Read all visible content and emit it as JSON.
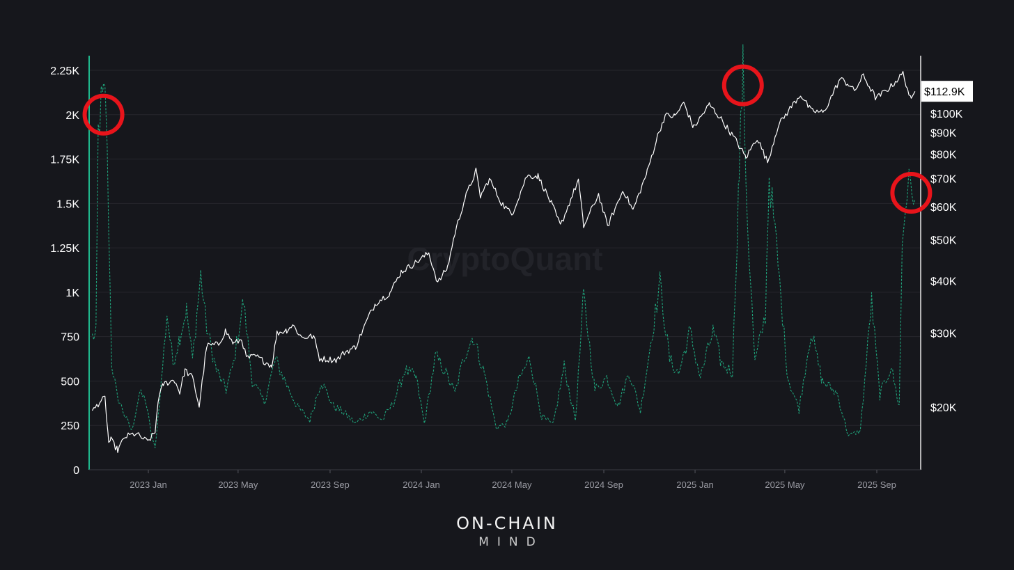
{
  "watermark": "CryptoQuant",
  "brand": {
    "line1": "ON-CHAIN",
    "line2": "MIND"
  },
  "colors": {
    "background": "#16171c",
    "price_line": "#ffffff",
    "metric_line": "#1fa27a",
    "left_axis": "#1fb88c",
    "highlight_circle": "#e8141b",
    "grid": "#26272d"
  },
  "chart_data": {
    "type": "line",
    "title": "",
    "x_ticks": [
      "2023 Jan",
      "2023 May",
      "2023 Sep",
      "2024 Jan",
      "2024 May",
      "2024 Sep",
      "2025 Jan",
      "2025 May",
      "2025 Sep"
    ],
    "x_range": [
      "2022-10-17",
      "2025-10-24"
    ],
    "y_left": {
      "ticks": [
        0,
        250,
        500,
        750,
        1000,
        1250,
        1500,
        1750,
        2000,
        2250
      ],
      "tick_labels": [
        "0",
        "250",
        "500",
        "750",
        "1K",
        "1.25K",
        "1.5K",
        "1.75K",
        "2K",
        "2.25K"
      ],
      "range": [
        0,
        2250
      ]
    },
    "y_right": {
      "scale": "log",
      "ticks": [
        20000,
        30000,
        40000,
        50000,
        60000,
        70000,
        80000,
        90000,
        100000
      ],
      "tick_labels": [
        "$20K",
        "$30K",
        "$40K",
        "$50K",
        "$60K",
        "$70K",
        "$80K",
        "$90K",
        "$100K"
      ],
      "last_value_label": "$112.9K"
    },
    "series": [
      {
        "axis": "right",
        "style": "solid",
        "color": "#ffffff",
        "points": [
          [
            "2022-10-18",
            19500
          ],
          [
            "2022-10-28",
            20600
          ],
          [
            "2022-11-04",
            21000
          ],
          [
            "2022-11-09",
            16500
          ],
          [
            "2022-11-12",
            16700
          ],
          [
            "2022-11-21",
            15800
          ],
          [
            "2022-12-01",
            17000
          ],
          [
            "2022-12-15",
            17300
          ],
          [
            "2022-12-31",
            16550
          ],
          [
            "2023-01-10",
            17400
          ],
          [
            "2023-01-14",
            20800
          ],
          [
            "2023-01-21",
            22700
          ],
          [
            "2023-02-05",
            23200
          ],
          [
            "2023-02-12",
            21700
          ],
          [
            "2023-02-19",
            24500
          ],
          [
            "2023-03-01",
            23500
          ],
          [
            "2023-03-10",
            20100
          ],
          [
            "2023-03-20",
            28000
          ],
          [
            "2023-04-05",
            28200
          ],
          [
            "2023-04-14",
            30400
          ],
          [
            "2023-04-25",
            28300
          ],
          [
            "2023-05-06",
            29000
          ],
          [
            "2023-05-12",
            26200
          ],
          [
            "2023-05-25",
            26400
          ],
          [
            "2023-06-15",
            25100
          ],
          [
            "2023-06-22",
            30000
          ],
          [
            "2023-07-05",
            30500
          ],
          [
            "2023-07-13",
            31400
          ],
          [
            "2023-07-25",
            29300
          ],
          [
            "2023-08-10",
            29500
          ],
          [
            "2023-08-18",
            26100
          ],
          [
            "2023-09-10",
            25900
          ],
          [
            "2023-09-20",
            27000
          ],
          [
            "2023-10-05",
            27800
          ],
          [
            "2023-10-23",
            33000
          ],
          [
            "2023-11-01",
            35400
          ],
          [
            "2023-11-20",
            37400
          ],
          [
            "2023-12-05",
            42000
          ],
          [
            "2023-12-20",
            43600
          ],
          [
            "2024-01-11",
            46500
          ],
          [
            "2024-01-23",
            39500
          ],
          [
            "2024-02-05",
            43000
          ],
          [
            "2024-02-15",
            52000
          ],
          [
            "2024-02-28",
            62500
          ],
          [
            "2024-03-14",
            73000
          ],
          [
            "2024-03-20",
            63500
          ],
          [
            "2024-04-01",
            69800
          ],
          [
            "2024-04-17",
            61300
          ],
          [
            "2024-05-01",
            57500
          ],
          [
            "2024-05-21",
            71000
          ],
          [
            "2024-06-05",
            71000
          ],
          [
            "2024-06-24",
            60500
          ],
          [
            "2024-07-05",
            54000
          ],
          [
            "2024-07-29",
            69500
          ],
          [
            "2024-08-05",
            53800
          ],
          [
            "2024-08-25",
            64200
          ],
          [
            "2024-09-06",
            53900
          ],
          [
            "2024-09-27",
            65800
          ],
          [
            "2024-10-10",
            58800
          ],
          [
            "2024-10-29",
            72600
          ],
          [
            "2024-11-12",
            88500
          ],
          [
            "2024-11-22",
            98900
          ],
          [
            "2024-12-05",
            98500
          ],
          [
            "2024-12-17",
            106000
          ],
          [
            "2024-12-30",
            92500
          ],
          [
            "2025-01-20",
            105000
          ],
          [
            "2025-02-03",
            98000
          ],
          [
            "2025-02-25",
            86000
          ],
          [
            "2025-03-10",
            78500
          ],
          [
            "2025-03-25",
            87500
          ],
          [
            "2025-04-08",
            76500
          ],
          [
            "2025-04-22",
            93500
          ],
          [
            "2025-05-10",
            104000
          ],
          [
            "2025-05-22",
            111000
          ],
          [
            "2025-06-05",
            101500
          ],
          [
            "2025-06-22",
            100500
          ],
          [
            "2025-07-14",
            121000
          ],
          [
            "2025-07-25",
            117500
          ],
          [
            "2025-08-02",
            113000
          ],
          [
            "2025-08-14",
            123000
          ],
          [
            "2025-08-31",
            108500
          ],
          [
            "2025-09-20",
            116000
          ],
          [
            "2025-10-06",
            124500
          ],
          [
            "2025-10-17",
            107000
          ],
          [
            "2025-10-22",
            112900
          ]
        ]
      },
      {
        "axis": "left",
        "style": "dashed",
        "color": "#1fa27a",
        "points": [
          [
            "2022-10-18",
            750
          ],
          [
            "2022-10-23",
            760
          ],
          [
            "2022-10-26",
            1900
          ],
          [
            "2022-10-30",
            2050
          ],
          [
            "2022-11-02",
            2080
          ],
          [
            "2022-11-05",
            2100
          ],
          [
            "2022-11-09",
            1400
          ],
          [
            "2022-11-13",
            600
          ],
          [
            "2022-11-20",
            420
          ],
          [
            "2022-12-01",
            300
          ],
          [
            "2022-12-10",
            220
          ],
          [
            "2022-12-20",
            430
          ],
          [
            "2022-12-28",
            400
          ],
          [
            "2023-01-05",
            200
          ],
          [
            "2023-01-10",
            120
          ],
          [
            "2023-01-18",
            480
          ],
          [
            "2023-01-26",
            880
          ],
          [
            "2023-02-03",
            600
          ],
          [
            "2023-02-12",
            750
          ],
          [
            "2023-02-21",
            900
          ],
          [
            "2023-03-01",
            620
          ],
          [
            "2023-03-12",
            1100
          ],
          [
            "2023-03-20",
            800
          ],
          [
            "2023-04-02",
            560
          ],
          [
            "2023-04-15",
            450
          ],
          [
            "2023-04-25",
            600
          ],
          [
            "2023-05-08",
            950
          ],
          [
            "2023-05-20",
            500
          ],
          [
            "2023-06-05",
            380
          ],
          [
            "2023-06-20",
            620
          ],
          [
            "2023-07-05",
            480
          ],
          [
            "2023-07-20",
            350
          ],
          [
            "2023-08-05",
            280
          ],
          [
            "2023-08-20",
            500
          ],
          [
            "2023-09-05",
            360
          ],
          [
            "2023-09-20",
            320
          ],
          [
            "2023-10-05",
            260
          ],
          [
            "2023-10-25",
            330
          ],
          [
            "2023-11-10",
            280
          ],
          [
            "2023-11-25",
            380
          ],
          [
            "2023-12-10",
            560
          ],
          [
            "2023-12-25",
            520
          ],
          [
            "2024-01-05",
            260
          ],
          [
            "2024-01-20",
            640
          ],
          [
            "2024-02-01",
            560
          ],
          [
            "2024-02-15",
            430
          ],
          [
            "2024-02-28",
            650
          ],
          [
            "2024-03-10",
            750
          ],
          [
            "2024-03-25",
            550
          ],
          [
            "2024-04-10",
            240
          ],
          [
            "2024-04-25",
            260
          ],
          [
            "2024-05-10",
            500
          ],
          [
            "2024-05-25",
            630
          ],
          [
            "2024-06-10",
            300
          ],
          [
            "2024-06-25",
            250
          ],
          [
            "2024-07-10",
            580
          ],
          [
            "2024-07-25",
            280
          ],
          [
            "2024-08-05",
            980
          ],
          [
            "2024-08-20",
            450
          ],
          [
            "2024-09-05",
            520
          ],
          [
            "2024-09-20",
            360
          ],
          [
            "2024-10-05",
            550
          ],
          [
            "2024-10-20",
            330
          ],
          [
            "2024-11-05",
            780
          ],
          [
            "2024-11-15",
            1050
          ],
          [
            "2024-11-28",
            620
          ],
          [
            "2024-12-10",
            540
          ],
          [
            "2024-12-25",
            780
          ],
          [
            "2025-01-08",
            520
          ],
          [
            "2025-01-25",
            780
          ],
          [
            "2025-02-05",
            600
          ],
          [
            "2025-02-20",
            550
          ],
          [
            "2025-03-01",
            1680
          ],
          [
            "2025-03-06",
            2250
          ],
          [
            "2025-03-12",
            1400
          ],
          [
            "2025-03-22",
            600
          ],
          [
            "2025-04-05",
            870
          ],
          [
            "2025-04-10",
            1660
          ],
          [
            "2025-04-20",
            1250
          ],
          [
            "2025-05-05",
            520
          ],
          [
            "2025-05-20",
            340
          ],
          [
            "2025-06-05",
            780
          ],
          [
            "2025-06-20",
            500
          ],
          [
            "2025-07-10",
            430
          ],
          [
            "2025-07-25",
            190
          ],
          [
            "2025-08-10",
            220
          ],
          [
            "2025-08-25",
            950
          ],
          [
            "2025-09-05",
            420
          ],
          [
            "2025-09-20",
            580
          ],
          [
            "2025-10-01",
            360
          ],
          [
            "2025-10-05",
            1280
          ],
          [
            "2025-10-12",
            1600
          ],
          [
            "2025-10-20",
            1580
          ],
          [
            "2025-10-22",
            1520
          ]
        ]
      }
    ],
    "highlights": [
      {
        "shape": "circle",
        "date": "2022-11-02",
        "value": 2000,
        "axis": "left"
      },
      {
        "shape": "circle",
        "date": "2025-03-06",
        "value": 2165,
        "axis": "left"
      },
      {
        "shape": "circle",
        "date": "2025-10-17",
        "value": 1560,
        "axis": "left"
      }
    ]
  }
}
